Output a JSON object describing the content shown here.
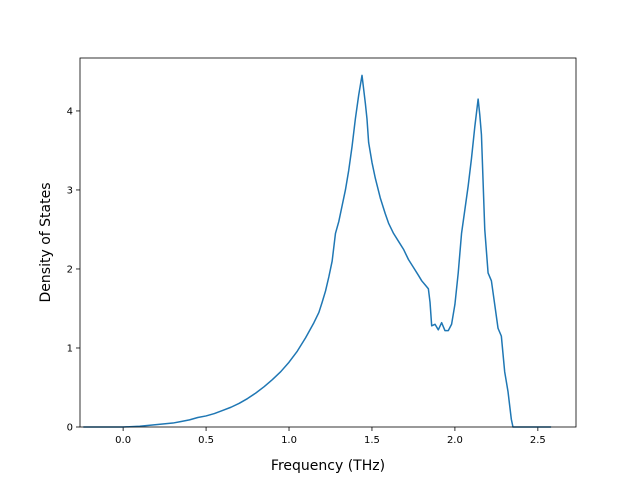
{
  "chart_data": {
    "type": "line",
    "title": "",
    "xlabel": "Frequency (THz)",
    "ylabel": "Density of States",
    "xlim": [
      -0.26,
      2.73
    ],
    "ylim": [
      0,
      4.67
    ],
    "xticks": [
      0.0,
      0.5,
      1.0,
      1.5,
      2.0,
      2.5
    ],
    "xtick_labels": [
      "0.0",
      "0.5",
      "1.0",
      "1.5",
      "2.0",
      "2.5"
    ],
    "yticks": [
      0,
      1,
      2,
      3,
      4
    ],
    "ytick_labels": [
      "0",
      "1",
      "2",
      "3",
      "4"
    ],
    "grid": false,
    "legend": "none",
    "series": [
      {
        "color": "#1f77b4",
        "x": [
          -0.24,
          -0.1,
          0.0,
          0.1,
          0.2,
          0.3,
          0.35,
          0.4,
          0.45,
          0.5,
          0.55,
          0.6,
          0.65,
          0.7,
          0.75,
          0.8,
          0.85,
          0.9,
          0.95,
          1.0,
          1.05,
          1.1,
          1.15,
          1.18,
          1.2,
          1.22,
          1.24,
          1.26,
          1.28,
          1.3,
          1.32,
          1.34,
          1.36,
          1.38,
          1.4,
          1.42,
          1.44,
          1.46,
          1.47,
          1.48,
          1.5,
          1.52,
          1.55,
          1.58,
          1.6,
          1.63,
          1.66,
          1.69,
          1.72,
          1.75,
          1.78,
          1.8,
          1.82,
          1.84,
          1.85,
          1.86,
          1.88,
          1.9,
          1.92,
          1.94,
          1.96,
          1.98,
          2.0,
          2.02,
          2.04,
          2.06,
          2.08,
          2.1,
          2.12,
          2.14,
          2.15,
          2.16,
          2.18,
          2.2,
          2.22,
          2.24,
          2.26,
          2.28,
          2.3,
          2.32,
          2.34,
          2.35,
          2.4,
          2.5,
          2.58
        ],
        "y": [
          0.0,
          0.0,
          0.0,
          0.01,
          0.03,
          0.05,
          0.07,
          0.09,
          0.12,
          0.14,
          0.17,
          0.21,
          0.25,
          0.3,
          0.36,
          0.43,
          0.51,
          0.6,
          0.7,
          0.82,
          0.96,
          1.13,
          1.32,
          1.45,
          1.58,
          1.72,
          1.9,
          2.1,
          2.45,
          2.6,
          2.8,
          3.0,
          3.25,
          3.55,
          3.9,
          4.2,
          4.45,
          4.1,
          3.9,
          3.6,
          3.35,
          3.15,
          2.9,
          2.7,
          2.58,
          2.45,
          2.35,
          2.25,
          2.12,
          2.02,
          1.92,
          1.85,
          1.8,
          1.75,
          1.58,
          1.28,
          1.3,
          1.23,
          1.32,
          1.22,
          1.22,
          1.3,
          1.55,
          1.95,
          2.45,
          2.75,
          3.05,
          3.4,
          3.8,
          4.15,
          3.95,
          3.7,
          2.5,
          1.95,
          1.85,
          1.55,
          1.25,
          1.15,
          0.7,
          0.45,
          0.1,
          0.0,
          0.0,
          0.0,
          0.0
        ]
      }
    ]
  }
}
